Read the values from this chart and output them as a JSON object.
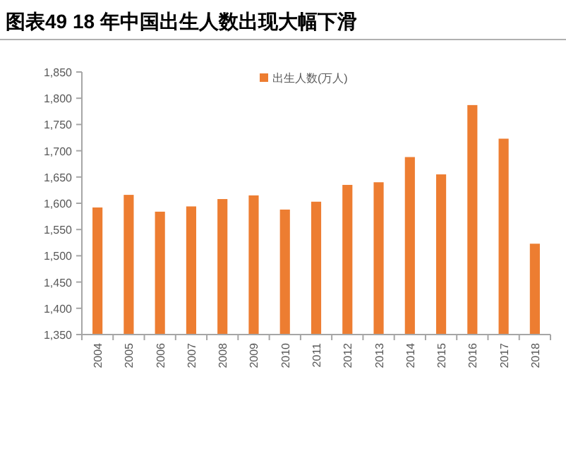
{
  "chart_data": {
    "type": "bar",
    "title": "图表49    18 年中国出生人数出现大幅下滑",
    "categories": [
      "2004",
      "2005",
      "2006",
      "2007",
      "2008",
      "2009",
      "2010",
      "2011",
      "2012",
      "2013",
      "2014",
      "2015",
      "2016",
      "2017",
      "2018"
    ],
    "series": [
      {
        "name": "出生人数(万人)",
        "color": "#ed7d31",
        "values": [
          1592,
          1616,
          1584,
          1594,
          1608,
          1615,
          1588,
          1603,
          1635,
          1640,
          1688,
          1655,
          1787,
          1723,
          1523
        ]
      }
    ],
    "ylim": [
      1350,
      1850
    ],
    "yticks": [
      {
        "value": 1350,
        "label": "1,350"
      },
      {
        "value": 1400,
        "label": "1,400"
      },
      {
        "value": 1450,
        "label": "1,450"
      },
      {
        "value": 1500,
        "label": "1,500"
      },
      {
        "value": 1550,
        "label": "1,550"
      },
      {
        "value": 1600,
        "label": "1,600"
      },
      {
        "value": 1650,
        "label": "1,650"
      },
      {
        "value": 1700,
        "label": "1,700"
      },
      {
        "value": 1750,
        "label": "1,750"
      },
      {
        "value": 1800,
        "label": "1,800"
      },
      {
        "value": 1850,
        "label": "1,850"
      }
    ],
    "legend": "top right"
  }
}
